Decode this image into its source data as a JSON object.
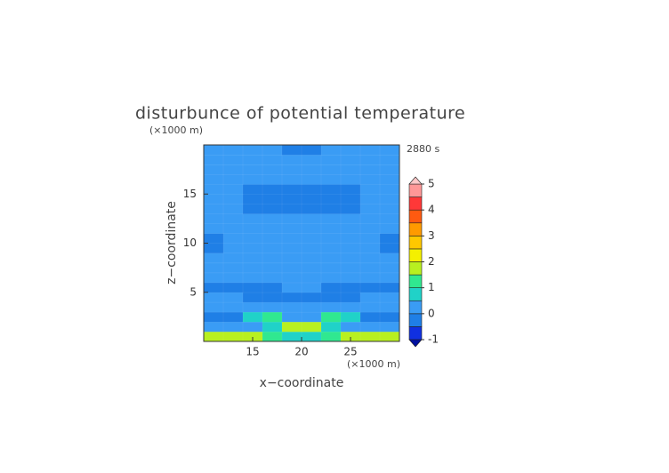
{
  "chart_data": {
    "type": "contour",
    "title": "disturbunce of potential temperature",
    "time_label": "2880 s",
    "x_label": "x−coordinate",
    "y_label": "z−coordinate",
    "x_unit": "(×1000 m)",
    "y_unit": "(×1000 m)",
    "xlim": [
      10,
      30
    ],
    "ylim": [
      0,
      20
    ],
    "xticks": [
      15,
      20,
      25
    ],
    "yticks": [
      5,
      10,
      15
    ],
    "x": [
      11,
      13,
      15,
      17,
      19,
      21,
      23,
      25,
      27,
      29
    ],
    "y": [
      0.5,
      1.5,
      2.5,
      3.5,
      4.5,
      5.5,
      6.5,
      7.5,
      8.5,
      9.5,
      10.5,
      11.5,
      12.5,
      13.5,
      14.5,
      15.5,
      16.5,
      17.5,
      18.5,
      19.5
    ],
    "z": [
      [
        1.6,
        1.7,
        1.6,
        1.2,
        0.6,
        0.6,
        1.2,
        1.6,
        1.7,
        1.6
      ],
      [
        0.2,
        0.2,
        0.3,
        0.5,
        1.6,
        1.6,
        0.5,
        0.3,
        0.2,
        0.2
      ],
      [
        -0.4,
        -0.3,
        0.9,
        1.2,
        0.4,
        0.4,
        1.2,
        0.9,
        -0.3,
        -0.4
      ],
      [
        0.1,
        0.2,
        0.2,
        0.3,
        0.2,
        0.2,
        0.3,
        0.2,
        0.2,
        0.1
      ],
      [
        0.2,
        0.3,
        -0.1,
        -0.2,
        -0.2,
        -0.2,
        -0.2,
        -0.1,
        0.3,
        0.2
      ],
      [
        -0.2,
        -0.2,
        -0.2,
        -0.1,
        0.2,
        0.2,
        -0.1,
        -0.2,
        -0.2,
        -0.2
      ],
      [
        0.2,
        0.2,
        0.2,
        0.2,
        0.2,
        0.2,
        0.2,
        0.2,
        0.2,
        0.2
      ],
      [
        0.2,
        0.2,
        0.2,
        0.2,
        0.2,
        0.2,
        0.2,
        0.2,
        0.2,
        0.2
      ],
      [
        0.2,
        0.2,
        0.2,
        0.2,
        0.2,
        0.2,
        0.2,
        0.2,
        0.2,
        0.2
      ],
      [
        -0.2,
        0.2,
        0.2,
        0.2,
        0.2,
        0.2,
        0.2,
        0.2,
        0.2,
        -0.2
      ],
      [
        -0.2,
        0.2,
        0.2,
        0.2,
        0.2,
        0.2,
        0.2,
        0.2,
        0.2,
        -0.2
      ],
      [
        0.2,
        0.2,
        0.2,
        0.2,
        0.2,
        0.2,
        0.2,
        0.2,
        0.2,
        0.2
      ],
      [
        0.2,
        0.2,
        0.2,
        0.2,
        0.2,
        0.2,
        0.2,
        0.2,
        0.2,
        0.2
      ],
      [
        0.2,
        0.2,
        -0.2,
        -0.2,
        -0.2,
        -0.2,
        -0.2,
        -0.2,
        0.2,
        0.2
      ],
      [
        0.2,
        0.2,
        -0.3,
        -0.3,
        -0.3,
        -0.3,
        -0.3,
        -0.3,
        0.2,
        0.2
      ],
      [
        0.2,
        0.2,
        -0.2,
        -0.2,
        -0.2,
        -0.2,
        -0.2,
        -0.2,
        0.2,
        0.2
      ],
      [
        0.2,
        0.2,
        0.2,
        0.2,
        0.2,
        0.2,
        0.2,
        0.2,
        0.2,
        0.2
      ],
      [
        0.2,
        0.2,
        0.2,
        0.2,
        0.2,
        0.2,
        0.2,
        0.2,
        0.2,
        0.2
      ],
      [
        0.2,
        0.2,
        0.2,
        0.2,
        0.2,
        0.2,
        0.2,
        0.2,
        0.2,
        0.2
      ],
      [
        0.2,
        0.2,
        0.2,
        0.2,
        -0.2,
        -0.2,
        0.2,
        0.2,
        0.2,
        0.2
      ]
    ],
    "levels": [
      -1,
      -0.5,
      0,
      0.5,
      1,
      1.5,
      2,
      2.5,
      3,
      3.5,
      4,
      4.5,
      5
    ],
    "colors": [
      "#1030e0",
      "#1f7fe6",
      "#3a9cf5",
      "#20d2c8",
      "#30e890",
      "#b8f020",
      "#f4f000",
      "#ffc800",
      "#ff9a00",
      "#ff5a10",
      "#ff3838",
      "#ff9898"
    ],
    "under_color": "#0010a0",
    "over_color": "#ffc8c8",
    "colorbar_ticks": [
      -1,
      0,
      1,
      2,
      3,
      4,
      5
    ]
  }
}
